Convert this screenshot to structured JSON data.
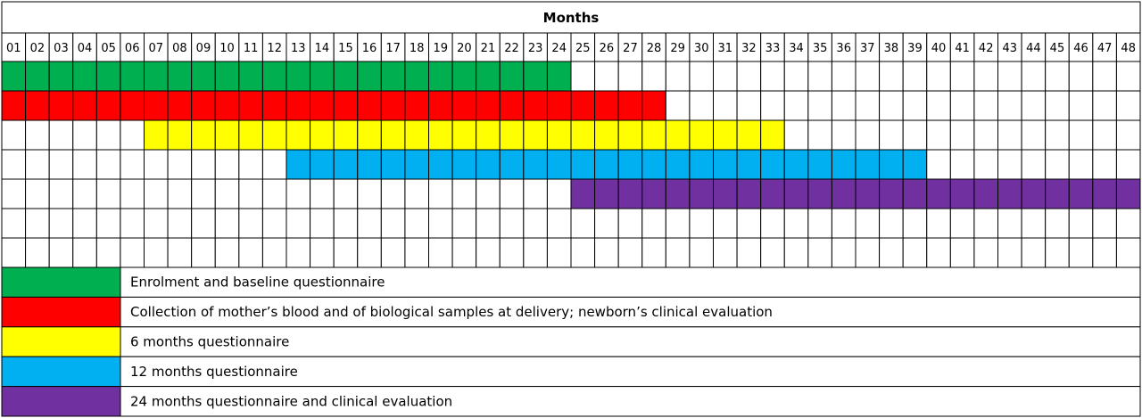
{
  "chart_data": {
    "type": "table",
    "title": "Months",
    "months": [
      "01",
      "02",
      "03",
      "04",
      "05",
      "06",
      "07",
      "08",
      "09",
      "10",
      "11",
      "12",
      "13",
      "14",
      "15",
      "16",
      "17",
      "18",
      "19",
      "20",
      "21",
      "22",
      "23",
      "24",
      "25",
      "26",
      "27",
      "28",
      "29",
      "30",
      "31",
      "32",
      "33",
      "34",
      "35",
      "36",
      "37",
      "38",
      "39",
      "40",
      "41",
      "42",
      "43",
      "44",
      "45",
      "46",
      "47",
      "48"
    ],
    "activities": [
      {
        "label": "Enrolment and baseline questionnaire",
        "color": "#00b050",
        "start_month": 1,
        "end_month": 24
      },
      {
        "label": "Collection of mother’s blood and of biological samples at delivery; newborn’s clinical evaluation",
        "color": "#ff0000",
        "start_month": 1,
        "end_month": 28
      },
      {
        "label": "6 months questionnaire",
        "color": "#ffff00",
        "start_month": 7,
        "end_month": 33
      },
      {
        "label": "12 months questionnaire",
        "color": "#00b0f0",
        "start_month": 13,
        "end_month": 39
      },
      {
        "label": "24 months questionnaire and clinical evaluation",
        "color": "#7030a0",
        "start_month": 25,
        "end_month": 48
      }
    ],
    "empty_rows": 2
  }
}
